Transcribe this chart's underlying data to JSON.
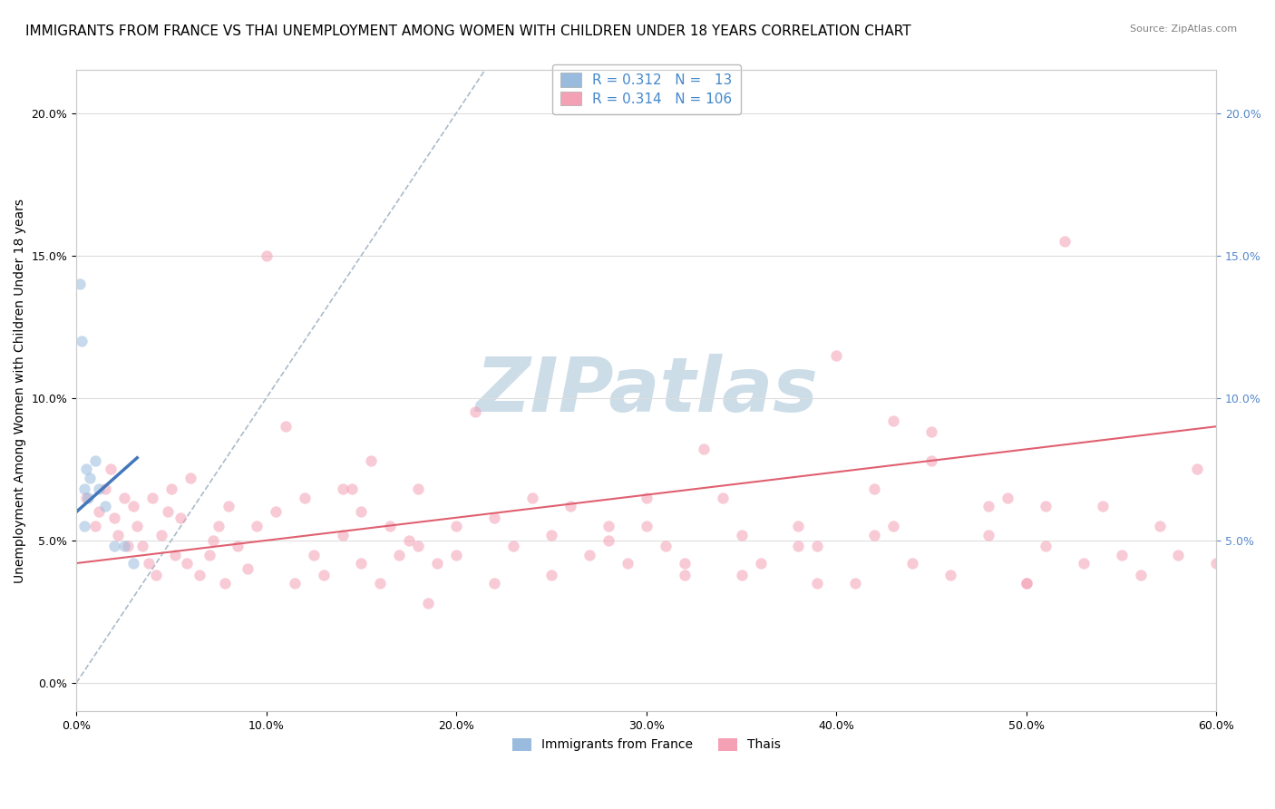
{
  "title": "IMMIGRANTS FROM FRANCE VS THAI UNEMPLOYMENT AMONG WOMEN WITH CHILDREN UNDER 18 YEARS CORRELATION CHART",
  "source": "Source: ZipAtlas.com",
  "ylabel": "Unemployment Among Women with Children Under 18 years",
  "xlim": [
    0.0,
    0.6
  ],
  "ylim": [
    -0.01,
    0.215
  ],
  "xticks": [
    0.0,
    0.1,
    0.2,
    0.3,
    0.4,
    0.5,
    0.6
  ],
  "xtick_labels": [
    "0.0%",
    "10.0%",
    "20.0%",
    "30.0%",
    "40.0%",
    "50.0%",
    "60.0%"
  ],
  "yticks": [
    0.0,
    0.05,
    0.1,
    0.15,
    0.2
  ],
  "ytick_labels": [
    "0.0%",
    "5.0%",
    "10.0%",
    "15.0%",
    "20.0%"
  ],
  "right_yticks": [
    0.05,
    0.1,
    0.15,
    0.2
  ],
  "right_ytick_labels": [
    "5.0%",
    "10.0%",
    "15.0%",
    "20.0%"
  ],
  "legend_entries": [
    {
      "label": "Immigrants from France",
      "R": 0.312,
      "N": 13
    },
    {
      "label": "Thais",
      "R": 0.314,
      "N": 106
    }
  ],
  "blue_scatter_x": [
    0.002,
    0.003,
    0.004,
    0.005,
    0.006,
    0.007,
    0.01,
    0.012,
    0.015,
    0.02,
    0.025,
    0.03,
    0.004
  ],
  "blue_scatter_y": [
    0.14,
    0.12,
    0.068,
    0.075,
    0.065,
    0.072,
    0.078,
    0.068,
    0.062,
    0.048,
    0.048,
    0.042,
    0.055
  ],
  "pink_scatter_x": [
    0.005,
    0.01,
    0.012,
    0.015,
    0.018,
    0.02,
    0.022,
    0.025,
    0.027,
    0.03,
    0.032,
    0.035,
    0.038,
    0.04,
    0.042,
    0.045,
    0.048,
    0.05,
    0.052,
    0.055,
    0.058,
    0.06,
    0.065,
    0.07,
    0.072,
    0.075,
    0.078,
    0.08,
    0.085,
    0.09,
    0.095,
    0.1,
    0.105,
    0.11,
    0.115,
    0.12,
    0.125,
    0.13,
    0.14,
    0.145,
    0.15,
    0.155,
    0.16,
    0.165,
    0.17,
    0.175,
    0.18,
    0.185,
    0.19,
    0.2,
    0.21,
    0.22,
    0.23,
    0.24,
    0.25,
    0.26,
    0.27,
    0.28,
    0.29,
    0.3,
    0.31,
    0.32,
    0.33,
    0.34,
    0.35,
    0.36,
    0.38,
    0.39,
    0.4,
    0.41,
    0.42,
    0.43,
    0.44,
    0.45,
    0.46,
    0.48,
    0.49,
    0.5,
    0.51,
    0.52,
    0.53,
    0.54,
    0.55,
    0.56,
    0.57,
    0.58,
    0.59,
    0.6,
    0.43,
    0.39,
    0.48,
    0.45,
    0.2,
    0.15,
    0.25,
    0.35,
    0.3,
    0.22,
    0.18,
    0.28,
    0.32,
    0.14,
    0.42,
    0.38,
    0.5,
    0.51
  ],
  "pink_scatter_y": [
    0.065,
    0.055,
    0.06,
    0.068,
    0.075,
    0.058,
    0.052,
    0.065,
    0.048,
    0.062,
    0.055,
    0.048,
    0.042,
    0.065,
    0.038,
    0.052,
    0.06,
    0.068,
    0.045,
    0.058,
    0.042,
    0.072,
    0.038,
    0.045,
    0.05,
    0.055,
    0.035,
    0.062,
    0.048,
    0.04,
    0.055,
    0.15,
    0.06,
    0.09,
    0.035,
    0.065,
    0.045,
    0.038,
    0.052,
    0.068,
    0.042,
    0.078,
    0.035,
    0.055,
    0.045,
    0.05,
    0.068,
    0.028,
    0.042,
    0.055,
    0.095,
    0.058,
    0.048,
    0.065,
    0.038,
    0.062,
    0.045,
    0.05,
    0.042,
    0.055,
    0.048,
    0.038,
    0.082,
    0.065,
    0.052,
    0.042,
    0.055,
    0.048,
    0.115,
    0.035,
    0.068,
    0.055,
    0.042,
    0.088,
    0.038,
    0.052,
    0.065,
    0.035,
    0.048,
    0.155,
    0.042,
    0.062,
    0.045,
    0.038,
    0.055,
    0.045,
    0.075,
    0.042,
    0.092,
    0.035,
    0.062,
    0.078,
    0.045,
    0.06,
    0.052,
    0.038,
    0.065,
    0.035,
    0.048,
    0.055,
    0.042,
    0.068,
    0.052,
    0.048,
    0.035,
    0.062
  ],
  "blue_line_x": [
    0.0,
    0.032
  ],
  "blue_line_y": [
    0.06,
    0.079
  ],
  "pink_line_x": [
    0.0,
    0.6
  ],
  "pink_line_y": [
    0.042,
    0.09
  ],
  "diagonal_line_x": [
    0.0,
    0.215
  ],
  "diagonal_line_y": [
    0.0,
    0.215
  ],
  "title_fontsize": 11,
  "axis_label_fontsize": 10,
  "tick_fontsize": 9,
  "legend_fontsize": 11,
  "scatter_size": 80,
  "scatter_alpha": 0.55,
  "watermark_text": "ZIPatlas",
  "watermark_color": "#ccdde8",
  "background_color": "#ffffff",
  "grid_color": "#dddddd",
  "blue_line_color": "#4477bb",
  "pink_line_color": "#e06070",
  "blue_scatter_color": "#99bbdd",
  "pink_scatter_color": "#f4a0b5",
  "diagonal_color": "#aabbcc",
  "right_tick_color": "#5588cc"
}
